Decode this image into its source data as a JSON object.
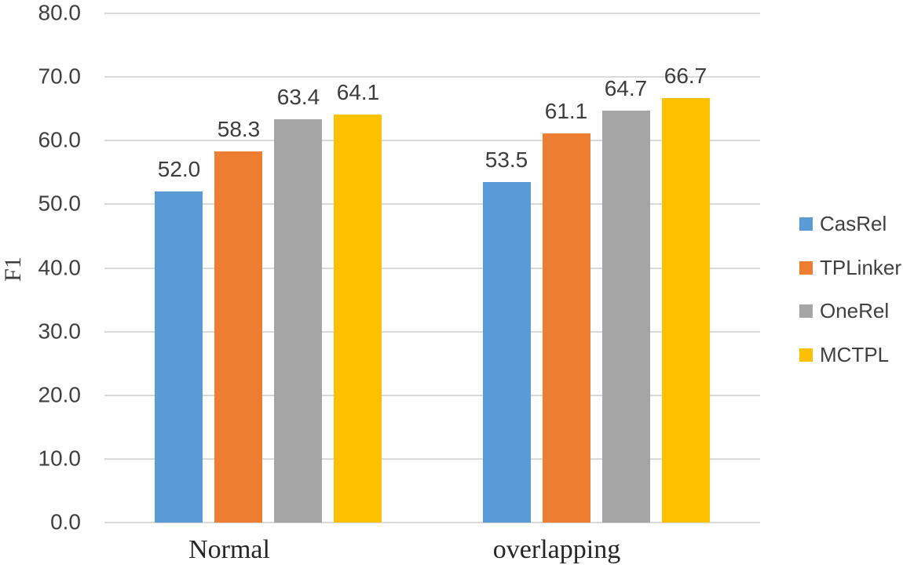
{
  "chart_data": {
    "type": "bar",
    "title": "",
    "categories": [
      "Normal",
      "overlapping"
    ],
    "series": [
      {
        "name": "CasRel",
        "color": "#5B9BD5",
        "values": [
          52.0,
          53.5
        ],
        "labels": [
          "52.0",
          "53.5"
        ]
      },
      {
        "name": "TPLinker",
        "color": "#ED7D31",
        "values": [
          58.3,
          61.1
        ],
        "labels": [
          "58.3",
          "61.1"
        ]
      },
      {
        "name": "OneRel",
        "color": "#A5A5A5",
        "values": [
          63.4,
          64.7
        ],
        "labels": [
          "63.4",
          "64.7"
        ]
      },
      {
        "name": "MCTPL",
        "color": "#FFC000",
        "values": [
          64.1,
          66.7
        ],
        "labels": [
          "64.1",
          "66.7"
        ]
      }
    ],
    "xlabel": "",
    "ylabel": "F1",
    "ylim": [
      0,
      80
    ],
    "ytick_step": 10,
    "ytick_labels": [
      "0.0",
      "10.0",
      "20.0",
      "30.0",
      "40.0",
      "50.0",
      "60.0",
      "70.0",
      "80.0"
    ],
    "grid": true,
    "gridline_color": "#d9d9d9",
    "value_labels_shown": true,
    "legend_position": "right",
    "background": "#ffffff"
  }
}
